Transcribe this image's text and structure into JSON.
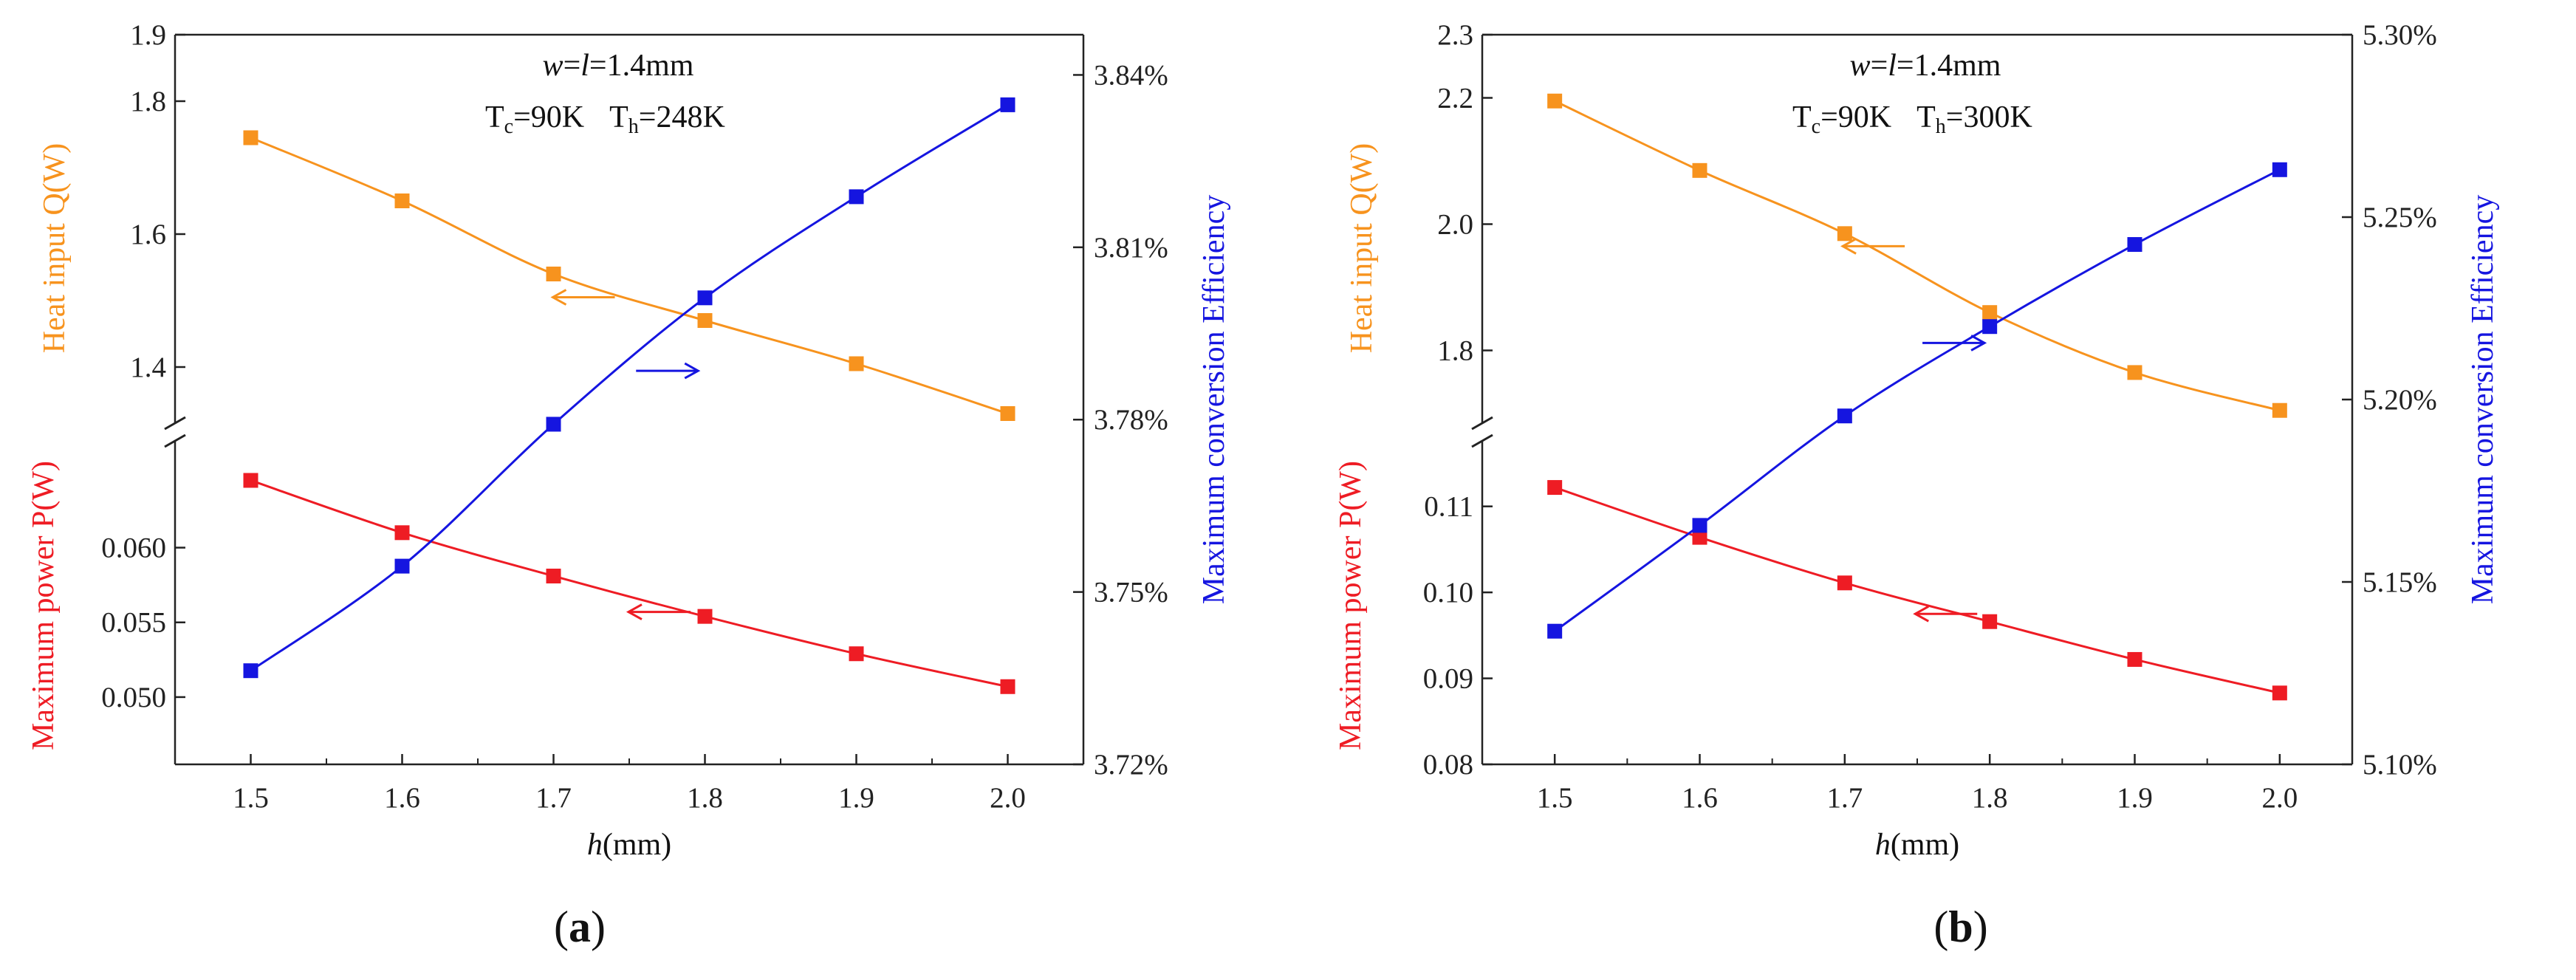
{
  "colors": {
    "heat": "#F7931E",
    "power": "#EE1C24",
    "efficiency": "#1515E0",
    "axis": "#222222"
  },
  "chart_data": [
    {
      "type": "line",
      "panel_label": "a",
      "annotation": {
        "line1_w": "w",
        "line1_eq": "=",
        "line1_l": "l",
        "line1_rest": "=1.4mm",
        "tc_sym": "T",
        "tc_sub": "c",
        "tc_val": "=90K",
        "th_sym": "T",
        "th_sub": "h",
        "th_val": "=248K"
      },
      "xlabel_italic": "h",
      "xlabel_rest": "(mm)",
      "x": [
        1.5,
        1.6,
        1.7,
        1.8,
        1.9,
        2.0
      ],
      "x_ticks": [
        "1.5",
        "1.6",
        "1.7",
        "1.8",
        "1.9",
        "2.0"
      ],
      "xlim": [
        1.45,
        2.05
      ],
      "left_upper": {
        "label": "Heat input Q(W)",
        "ylim": [
          1.33,
          1.9
        ],
        "ticks": [
          1.4,
          1.6,
          1.8,
          1.9
        ],
        "tick_labels": [
          "1.4",
          "1.6",
          "1.8",
          "1.9"
        ]
      },
      "left_lower": {
        "label": "Maximum power P(W)",
        "ylim": [
          0.0455,
          0.0665
        ],
        "ticks": [
          0.05,
          0.055,
          0.06
        ],
        "tick_labels": [
          "0.050",
          "0.055",
          "0.060"
        ]
      },
      "right": {
        "label": "Maximum conversion Efficiency",
        "ylim": [
          3.72,
          3.847
        ],
        "ticks": [
          3.72,
          3.75,
          3.78,
          3.81,
          3.84
        ],
        "tick_labels": [
          "3.72%",
          "3.75%",
          "3.78%",
          "3.81%",
          "3.84%"
        ]
      },
      "series": [
        {
          "name": "Heat input Q(W)",
          "axis": "left_upper",
          "color_key": "heat",
          "values": [
            1.745,
            1.65,
            1.54,
            1.47,
            1.405,
            1.33
          ]
        },
        {
          "name": "Maximum power P(W)",
          "axis": "left_lower",
          "color_key": "power",
          "values": [
            0.0645,
            0.061,
            0.0581,
            0.0554,
            0.0529,
            0.0507
          ]
        },
        {
          "name": "Maximum conversion Efficiency",
          "axis": "right",
          "color_key": "efficiency",
          "values": [
            3.7363,
            3.7545,
            3.7792,
            3.8012,
            3.8188,
            3.8348
          ]
        }
      ],
      "arrows": [
        {
          "series": "Heat input Q(W)",
          "direction": "left",
          "x": 1.72,
          "y": 1.505,
          "axis": "left_upper"
        },
        {
          "series": "Maximum conversion Efficiency",
          "direction": "right",
          "x": 1.775,
          "y": 3.7885,
          "axis": "right"
        },
        {
          "series": "Maximum power P(W)",
          "direction": "left",
          "x": 1.77,
          "y": 0.0557,
          "axis": "left_lower"
        }
      ]
    },
    {
      "type": "line",
      "panel_label": "b",
      "annotation": {
        "line1_w": "w",
        "line1_eq": "=",
        "line1_l": "l",
        "line1_rest": "=1.4mm",
        "tc_sym": "T",
        "tc_sub": "c",
        "tc_val": "=90K",
        "th_sym": "T",
        "th_sub": "h",
        "th_val": "=300K"
      },
      "xlabel_italic": "h",
      "xlabel_rest": "(mm)",
      "x": [
        1.5,
        1.6,
        1.7,
        1.8,
        1.9,
        2.0
      ],
      "x_ticks": [
        "1.5",
        "1.6",
        "1.7",
        "1.8",
        "1.9",
        "2.0"
      ],
      "xlim": [
        1.45,
        2.05
      ],
      "left_upper": {
        "label": "Heat input Q(W)",
        "ylim": [
          1.7,
          2.3
        ],
        "ticks": [
          1.8,
          2.0,
          2.2,
          2.3
        ],
        "tick_labels": [
          "1.8",
          "2.0",
          "2.2",
          "2.3"
        ]
      },
      "left_lower": {
        "label": "Maximum power P(W)",
        "ylim": [
          0.08,
          0.1165
        ],
        "ticks": [
          0.08,
          0.09,
          0.1,
          0.11
        ],
        "tick_labels": [
          "0.08",
          "0.09",
          "0.10",
          "0.11"
        ]
      },
      "right": {
        "label": "Maximum conversion Efficiency",
        "ylim": [
          5.1,
          5.3
        ],
        "ticks": [
          5.1,
          5.15,
          5.2,
          5.25,
          5.3
        ],
        "tick_labels": [
          "5.10%",
          "5.15%",
          "5.20%",
          "5.25%",
          "5.30%"
        ]
      },
      "series": [
        {
          "name": "Heat input Q(W)",
          "axis": "left_upper",
          "color_key": "heat",
          "values": [
            2.195,
            2.085,
            1.985,
            1.86,
            1.765,
            1.705
          ]
        },
        {
          "name": "Maximum power P(W)",
          "axis": "left_lower",
          "color_key": "power",
          "values": [
            0.1122,
            0.1064,
            0.1011,
            0.0966,
            0.0922,
            0.0883
          ]
        },
        {
          "name": "Maximum conversion Efficiency",
          "axis": "right",
          "color_key": "efficiency",
          "values": [
            5.1365,
            5.1655,
            5.1955,
            5.22,
            5.2425,
            5.263
          ]
        }
      ],
      "arrows": [
        {
          "series": "Heat input Q(W)",
          "direction": "left",
          "x": 1.72,
          "y": 1.965,
          "axis": "left_upper"
        },
        {
          "series": "Maximum conversion Efficiency",
          "direction": "right",
          "x": 1.775,
          "y": 5.2155,
          "axis": "right"
        },
        {
          "series": "Maximum power P(W)",
          "direction": "left",
          "x": 1.77,
          "y": 0.0975,
          "axis": "left_lower"
        }
      ]
    }
  ]
}
